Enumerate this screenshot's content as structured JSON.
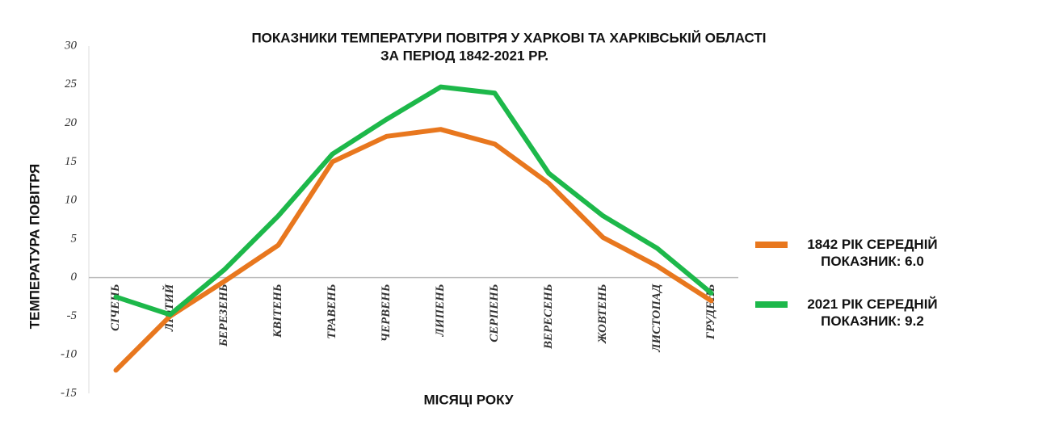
{
  "chart_data": {
    "type": "line",
    "title": [
      "ПОКАЗНИКИ ТЕМПЕРАТУРИ ПОВІТРЯ У ХАРКОВІ ТА ХАРКІВСЬКІЙ ОБЛАСТІ",
      "ЗА ПЕРІОД 1842-2021 РР."
    ],
    "y_label": "ТЕМПЕРАТУРА ПОВІТРЯ",
    "x_label": "МІСЯЦІ РОКУ",
    "categories": [
      "СІЧЕНЬ",
      "ЛЮТИЙ",
      "БЕРЕЗЕНЬ",
      "КВІТЕНЬ",
      "ТРАВЕНЬ",
      "ЧЕРВЕНЬ",
      "ЛИПЕНЬ",
      "СЕРПЕНЬ",
      "ВЕРЕСЕНЬ",
      "ЖОВТЕНЬ",
      "ЛИСТОПАД",
      "ГРУДЕНЬ"
    ],
    "series": [
      {
        "name": "1842 РІК СЕРЕДНІЙ ПОКАЗНИК: 6.0",
        "color": "#e8771e",
        "values": [
          -12,
          -5,
          -0.5,
          4.2,
          15,
          18.3,
          19.2,
          17.3,
          12.2,
          5.2,
          1.5,
          -3
        ]
      },
      {
        "name": "2021 РІК СЕРЕДНІЙ ПОКАЗНИК: 9.2",
        "color": "#1db84a",
        "values": [
          -2.5,
          -4.8,
          1,
          8,
          16,
          20.5,
          24.7,
          23.9,
          13.5,
          8,
          3.8,
          -2
        ]
      }
    ],
    "ylim": [
      -15,
      30
    ],
    "yticks": [
      -15,
      -10,
      -5,
      0,
      5,
      10,
      15,
      20,
      25,
      30
    ]
  }
}
